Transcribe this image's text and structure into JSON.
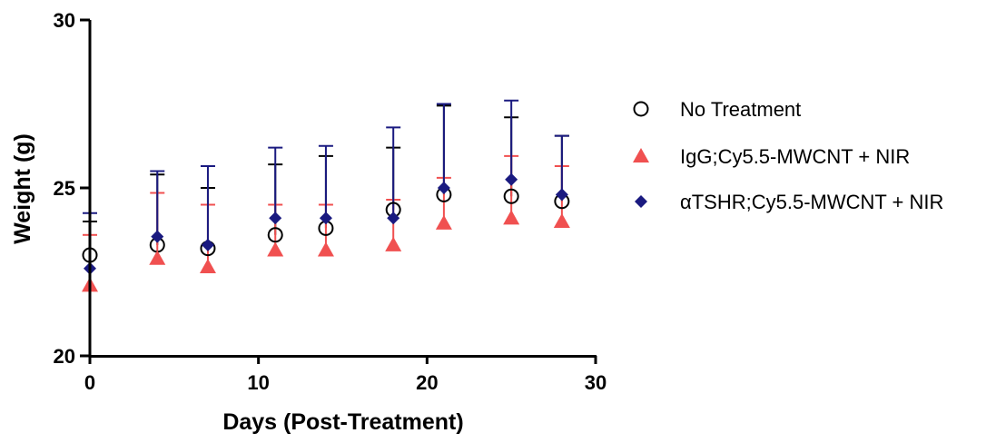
{
  "chart_data": {
    "type": "scatter",
    "title": "",
    "xlabel": "Days (Post-Treatment)",
    "ylabel": "Weight (g)",
    "xlim": [
      0,
      30
    ],
    "ylim": [
      20,
      30
    ],
    "x_ticks": [
      "0",
      "10",
      "20",
      "30"
    ],
    "y_ticks": [
      "20",
      "25",
      "30"
    ],
    "grid": false,
    "legend_position": "right",
    "x": [
      0,
      4,
      7,
      11,
      14,
      18,
      21,
      25,
      28
    ],
    "series": [
      {
        "name": "No Treatment",
        "marker": "circle-open",
        "color": "#000000",
        "values": [
          23.0,
          23.3,
          23.2,
          23.6,
          23.8,
          24.35,
          24.8,
          24.75,
          24.6
        ],
        "error_upper": [
          24.0,
          25.4,
          25.0,
          25.7,
          25.95,
          26.2,
          27.45,
          27.1,
          26.55
        ]
      },
      {
        "name": "IgG;Cy5.5-MWCNT + NIR",
        "marker": "triangle",
        "color": "#f05050",
        "values": [
          22.1,
          22.9,
          22.65,
          23.15,
          23.15,
          23.3,
          23.95,
          24.1,
          24.0
        ],
        "error_upper": [
          23.6,
          24.85,
          24.5,
          24.5,
          24.5,
          24.65,
          25.3,
          25.95,
          25.65
        ]
      },
      {
        "name": "αTSHR;Cy5.5-MWCNT + NIR",
        "marker": "diamond",
        "color": "#1a1a80",
        "values": [
          22.6,
          23.55,
          23.3,
          24.1,
          24.1,
          24.1,
          25.0,
          25.25,
          24.8
        ],
        "error_upper": [
          24.25,
          25.5,
          25.65,
          26.2,
          26.25,
          26.8,
          27.5,
          27.6,
          26.55
        ]
      }
    ]
  }
}
